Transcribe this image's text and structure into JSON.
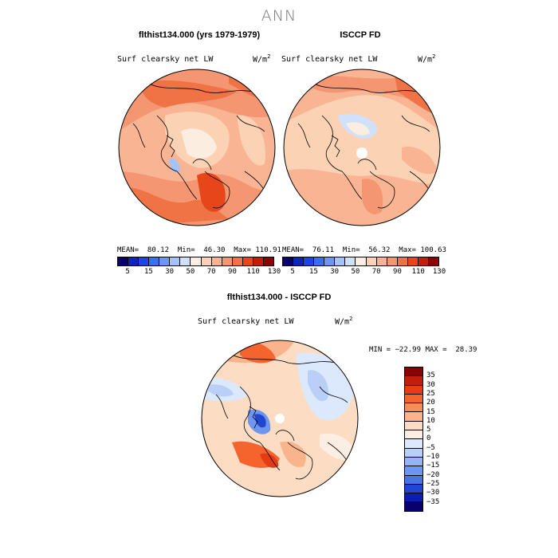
{
  "page_title": "ANN",
  "panels": [
    {
      "title": "flthist134.000 (yrs 1979-1979)",
      "variable": "Surf clearsky net LW",
      "units": "W/m",
      "units_exp": "2",
      "stats": "MEAN=  80.12  Min=  46.30  Max= 110.91"
    },
    {
      "title": "ISCCP FD",
      "variable": "Surf clearsky net LW",
      "units": "W/m",
      "units_exp": "2",
      "stats": "MEAN=  76.11  Min=  56.32  Max= 100.63"
    },
    {
      "title": "flthist134.000 - ISCCP FD",
      "variable": "Surf clearsky net LW",
      "units": "W/m",
      "units_exp": "2",
      "stats": "MIN = −22.99 MAX =  28.39"
    }
  ],
  "colorbar_top": {
    "colors": [
      "#08006b",
      "#0f24b8",
      "#1e46e6",
      "#3c6ef0",
      "#6e96f5",
      "#a5c3f8",
      "#d2e1fb",
      "#fbeee1",
      "#fcd2b4",
      "#f9b494",
      "#f59673",
      "#f07346",
      "#e64619",
      "#c31e0a",
      "#8c0000"
    ],
    "ticks": [
      "5",
      "15",
      "30",
      "50",
      "70",
      "90",
      "110",
      "130"
    ]
  },
  "colorbar_diff": {
    "colors": [
      "#8c0000",
      "#c31e0a",
      "#e63c14",
      "#f5642d",
      "#f78c55",
      "#fab48c",
      "#fcdcc3",
      "#fdeee3",
      "#dce8fb",
      "#b9cff8",
      "#96b4f3",
      "#6e96f0",
      "#4673e6",
      "#2346d2",
      "#0a1eb4",
      "#08006b"
    ],
    "ticks": [
      "35",
      "30",
      "25",
      "20",
      "15",
      "10",
      "5",
      "0",
      "−5",
      "−10",
      "−15",
      "−20",
      "−25",
      "−30",
      "−35"
    ]
  }
}
